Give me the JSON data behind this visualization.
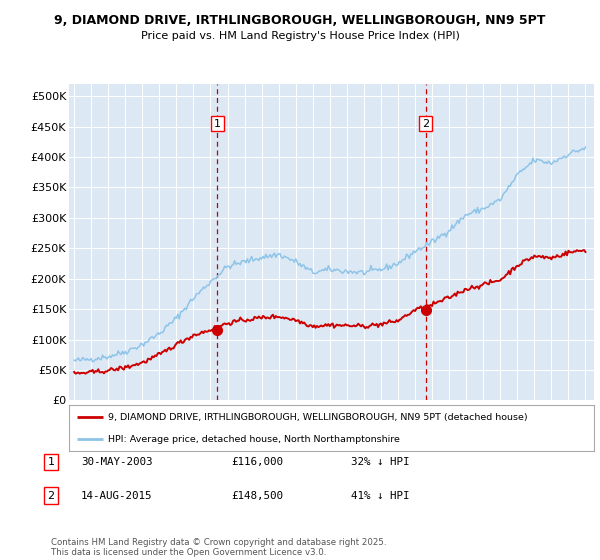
{
  "title_line1": "9, DIAMOND DRIVE, IRTHLINGBOROUGH, WELLINGBOROUGH, NN9 5PT",
  "title_line2": "Price paid vs. HM Land Registry's House Price Index (HPI)",
  "ylabel_ticks": [
    "£0",
    "£50K",
    "£100K",
    "£150K",
    "£200K",
    "£250K",
    "£300K",
    "£350K",
    "£400K",
    "£450K",
    "£500K"
  ],
  "ytick_values": [
    0,
    50000,
    100000,
    150000,
    200000,
    250000,
    300000,
    350000,
    400000,
    450000,
    500000
  ],
  "ylim": [
    0,
    520000
  ],
  "xlim_start": 1994.7,
  "xlim_end": 2025.5,
  "hpi_color": "#8ec4e8",
  "price_color": "#cc0000",
  "marker1_x": 2003.41,
  "marker1_y": 116000,
  "marker1_label": "1",
  "marker1_date": "30-MAY-2003",
  "marker1_price": "£116,000",
  "marker1_hpi": "32% ↓ HPI",
  "marker2_x": 2015.62,
  "marker2_y": 148500,
  "marker2_label": "2",
  "marker2_date": "14-AUG-2015",
  "marker2_price": "£148,500",
  "marker2_hpi": "41% ↓ HPI",
  "legend_label_red": "9, DIAMOND DRIVE, IRTHLINGBOROUGH, WELLINGBOROUGH, NN9 5PT (detached house)",
  "legend_label_blue": "HPI: Average price, detached house, North Northamptonshire",
  "footnote": "Contains HM Land Registry data © Crown copyright and database right 2025.\nThis data is licensed under the Open Government Licence v3.0.",
  "plot_bg_color": "#dce9f5",
  "fig_bg_color": "#ffffff"
}
